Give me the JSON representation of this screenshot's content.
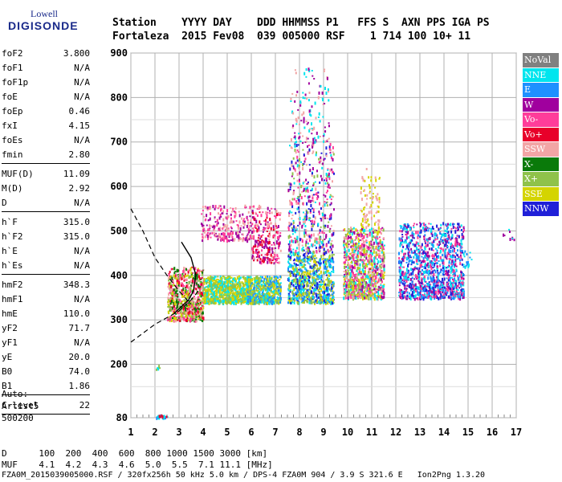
{
  "logo": {
    "top": "Lowell",
    "main": "DIGISONDE"
  },
  "header": {
    "line1": "Station    YYYY DAY    DDD HHMMSS P1   FFS S  AXN PPS IGA PS",
    "line2": "Fortaleza  2015 Fev08  039 005000 RSF    1 714 100 10+ 11"
  },
  "params": {
    "group1": [
      {
        "label": "foF2",
        "value": "3.800"
      },
      {
        "label": "foF1",
        "value": "N/A"
      },
      {
        "label": "foF1p",
        "value": "N/A"
      },
      {
        "label": "foE",
        "value": "N/A"
      },
      {
        "label": "foEp",
        "value": "0.46"
      },
      {
        "label": "fxI",
        "value": "4.15"
      },
      {
        "label": "foEs",
        "value": "N/A"
      },
      {
        "label": "fmin",
        "value": "2.80"
      }
    ],
    "group2": [
      {
        "label": "MUF(D)",
        "value": "11.09"
      },
      {
        "label": "M(D)",
        "value": "2.92"
      },
      {
        "label": "D",
        "value": "N/A"
      }
    ],
    "group3": [
      {
        "label": "h`F",
        "value": "315.0"
      },
      {
        "label": "h`F2",
        "value": "315.0"
      },
      {
        "label": "h`E",
        "value": "N/A"
      },
      {
        "label": "h`Es",
        "value": "N/A"
      }
    ],
    "group4": [
      {
        "label": "hmF2",
        "value": "348.3"
      },
      {
        "label": "hmF1",
        "value": "N/A"
      },
      {
        "label": "hmE",
        "value": "110.0"
      },
      {
        "label": "yF2",
        "value": "71.7"
      },
      {
        "label": "yF1",
        "value": "N/A"
      },
      {
        "label": "yE",
        "value": "20.0"
      },
      {
        "label": "B0",
        "value": "74.0"
      },
      {
        "label": "B1",
        "value": "1.86"
      }
    ],
    "group5": [
      {
        "label": "C-level",
        "value": "22"
      }
    ]
  },
  "auto": {
    "line1": "Auto:",
    "line2": "Artist5",
    "line3": "500200"
  },
  "legend": [
    {
      "label": "NoVal",
      "color": "#808080"
    },
    {
      "label": "NNE",
      "color": "#00e5ee"
    },
    {
      "label": "E",
      "color": "#1e90ff"
    },
    {
      "label": "W",
      "color": "#a0009e"
    },
    {
      "label": "Vo-",
      "color": "#ff3d9a"
    },
    {
      "label": "Vo+",
      "color": "#e8002a"
    },
    {
      "label": "SSW",
      "color": "#f2a5a5"
    },
    {
      "label": "X-",
      "color": "#0a7a0a"
    },
    {
      "label": "X+",
      "color": "#8fc24a"
    },
    {
      "label": "SSE",
      "color": "#d4d400"
    },
    {
      "label": "NNW",
      "color": "#2020d8"
    }
  ],
  "footer": {
    "line1": "D      100  200  400  600  800 1000 1500 3000 [km]",
    "line2": "MUF    4.1  4.2  4.3  4.6  5.0  5.5  7.1 11.1 [MHz]",
    "line3": "FZA0M_2015039005000.RSF / 320fx256h 50 kHz 5.0 km / DPS-4 FZA0M 904 / 3.9 S 321.6 E   Ion2Png 1.3.20"
  },
  "chart_data": {
    "type": "scatter",
    "xlim": [
      1,
      17
    ],
    "ylim": [
      80,
      900
    ],
    "x_ticks": [
      "1",
      "2",
      "3",
      "4",
      "5",
      "6",
      "7",
      "8",
      "9",
      "10",
      "11",
      "12",
      "13",
      "14",
      "15",
      "16",
      "17"
    ],
    "y_ticks": [
      "80",
      "200",
      "300",
      "400",
      "500",
      "600",
      "700",
      "800",
      "900"
    ],
    "grid": true,
    "clusters": [
      {
        "x": [
          2.0,
          2.5
        ],
        "y": [
          81,
          88
        ],
        "n": 30,
        "colors": [
          "#e8002a",
          "#1e90ff",
          "#00e5ee"
        ]
      },
      {
        "x": [
          2.5,
          4.0
        ],
        "y": [
          300,
          420
        ],
        "n": 700,
        "colors": [
          "#e8002a",
          "#d4d400",
          "#8fc24a",
          "#0a7a0a",
          "#ff3d9a",
          "#f2a5a5"
        ]
      },
      {
        "x": [
          4.0,
          6.0
        ],
        "y": [
          340,
          400
        ],
        "n": 800,
        "colors": [
          "#d4d400",
          "#8fc24a",
          "#00e5ee"
        ]
      },
      {
        "x": [
          3.9,
          6.1
        ],
        "y": [
          480,
          560
        ],
        "n": 260,
        "colors": [
          "#a0009e",
          "#ff3d9a",
          "#f2a5a5"
        ]
      },
      {
        "x": [
          5.8,
          7.2
        ],
        "y": [
          340,
          400
        ],
        "n": 500,
        "colors": [
          "#d4d400",
          "#1e90ff",
          "#00e5ee",
          "#8fc24a"
        ]
      },
      {
        "x": [
          6.0,
          7.2
        ],
        "y": [
          430,
          560
        ],
        "n": 250,
        "colors": [
          "#a0009e",
          "#ff3d9a",
          "#f2a5a5",
          "#e8002a"
        ]
      },
      {
        "x": [
          7.5,
          9.4
        ],
        "y": [
          340,
          450
        ],
        "n": 800,
        "colors": [
          "#d4d400",
          "#2020d8",
          "#1e90ff",
          "#00e5ee",
          "#8fc24a"
        ]
      },
      {
        "x": [
          7.5,
          9.4
        ],
        "y": [
          450,
          700
        ],
        "n": 500,
        "colors": [
          "#a0009e",
          "#ff3d9a",
          "#f2a5a5",
          "#00e5ee",
          "#2020d8",
          "#8fc24a"
        ]
      },
      {
        "x": [
          7.6,
          9.2
        ],
        "y": [
          700,
          870
        ],
        "n": 120,
        "colors": [
          "#a0009e",
          "#f2a5a5",
          "#00e5ee"
        ]
      },
      {
        "x": [
          9.8,
          11.5
        ],
        "y": [
          350,
          510
        ],
        "n": 1000,
        "colors": [
          "#f2a5a5",
          "#d4d400",
          "#ff3d9a",
          "#8fc24a",
          "#00e5ee",
          "#a0009e"
        ]
      },
      {
        "x": [
          10.5,
          11.3
        ],
        "y": [
          510,
          650
        ],
        "n": 80,
        "colors": [
          "#f2a5a5",
          "#d4d400"
        ]
      },
      {
        "x": [
          12.1,
          14.8
        ],
        "y": [
          350,
          520
        ],
        "n": 1200,
        "colors": [
          "#2020d8",
          "#1e90ff",
          "#00e5ee",
          "#a0009e",
          "#ff3d9a"
        ]
      },
      {
        "x": [
          14.8,
          15.2
        ],
        "y": [
          420,
          460
        ],
        "n": 15,
        "colors": [
          "#00e5ee",
          "#1e90ff"
        ]
      },
      {
        "x": [
          16.4,
          16.9
        ],
        "y": [
          480,
          515
        ],
        "n": 8,
        "colors": [
          "#a0009e",
          "#00e5ee"
        ]
      },
      {
        "x": [
          2.0,
          2.2
        ],
        "y": [
          190,
          200
        ],
        "n": 6,
        "colors": [
          "#8fc24a",
          "#00e5ee"
        ]
      }
    ],
    "profile_curve": [
      [
        2.8,
        315
      ],
      [
        3.1,
        330
      ],
      [
        3.4,
        345
      ],
      [
        3.6,
        365
      ],
      [
        3.7,
        400
      ],
      [
        3.5,
        440
      ],
      [
        3.1,
        475
      ]
    ],
    "dashed_upper": [
      [
        1,
        550
      ],
      [
        1.5,
        500
      ],
      [
        2.0,
        440
      ],
      [
        2.5,
        400
      ],
      [
        3.0,
        365
      ],
      [
        3.5,
        335
      ]
    ],
    "dashed_lower": [
      [
        1,
        250
      ],
      [
        1.5,
        270
      ],
      [
        2.0,
        290
      ],
      [
        2.5,
        305
      ],
      [
        3.0,
        320
      ],
      [
        3.5,
        345
      ],
      [
        3.8,
        365
      ]
    ]
  }
}
